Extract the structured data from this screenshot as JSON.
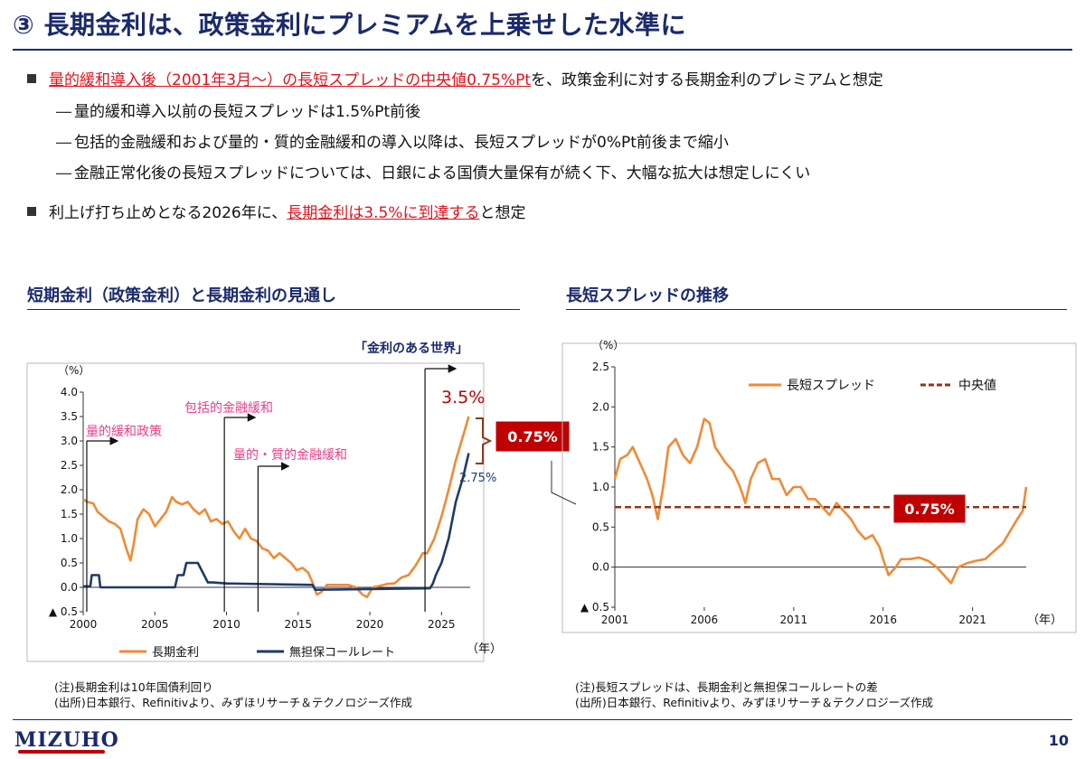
{
  "title": "③ 長期金利は、政策金利にプレミアムを上乗せした水準に",
  "bullets": {
    "b1_red": "量的緩和導入後（2001年3月～）の長短スプレッドの中央値0.75%Pt",
    "b1_rest": "を、政策金利に対する長期金利のプレミアムと想定",
    "s1": "量的緩和導入以前の長短スプレッドは1.5%Pt前後",
    "s2": "包括的金融緩和および量的・質的金融緩和の導入以降は、長短スプレッドが0%Pt前後まで縮小",
    "s3": "金融正常化後の長短スプレッドについては、日銀による国債大量保有が続く下、大幅な拡大は想定しにくい",
    "b2_a": "利上げ打ち止めとなる2026年に、",
    "b2_red": "長期金利は3.5%に到達する",
    "b2_c": "と想定",
    "dash": "―"
  },
  "left_section_title": "短期金利（政策金利）と長期金利の見通し",
  "right_section_title": "長短スプレッドの推移",
  "notes": {
    "left1": "(注)長期金利は10年国債利回り",
    "left2": "(出所)日本銀行、Refinitivより、みずほリサーチ＆テクノロジーズ作成",
    "right1": "(注)長短スプレッドは、長期金利と無担保コールレートの差",
    "right2": "(出所)日本銀行、Refinitivより、みずほリサーチ＆テクノロジーズ作成"
  },
  "footer": {
    "logo": "MIZUHO",
    "page": "10"
  },
  "colors": {
    "orange": "#f08a36",
    "navy": "#1f3a68",
    "brown": "#8b3a1a",
    "red": "#c00000",
    "pink": "#e8408a",
    "title": "#1a2a6c"
  },
  "chart_data": [
    {
      "type": "line",
      "title": "短期金利（政策金利）と長期金利の見通し",
      "ylabel": "（%）",
      "xlabel": "（年）",
      "xlim": [
        2000,
        2027
      ],
      "ylim": [
        -0.5,
        4.0
      ],
      "yticks": [
        -0.5,
        0.0,
        0.5,
        1.0,
        1.5,
        2.0,
        2.5,
        3.0,
        3.5,
        4.0
      ],
      "ytick_labels": [
        "▲ 0.5",
        "0.0",
        "0.5",
        "1.0",
        "1.5",
        "2.0",
        "2.5",
        "3.0",
        "3.5",
        "4.0"
      ],
      "xticks": [
        2000,
        2005,
        2010,
        2015,
        2020,
        2025
      ],
      "legend_position": "bottom",
      "series": [
        {
          "name": "長期金利",
          "color": "#f08a36",
          "x": [
            2000.0,
            2000.3,
            2000.7,
            2001.0,
            2001.4,
            2001.8,
            2002.2,
            2002.6,
            2003.0,
            2003.3,
            2003.5,
            2003.8,
            2004.2,
            2004.6,
            2005.0,
            2005.4,
            2005.8,
            2006.2,
            2006.5,
            2006.9,
            2007.3,
            2007.7,
            2008.1,
            2008.5,
            2008.9,
            2009.3,
            2009.7,
            2010.1,
            2010.5,
            2010.9,
            2011.3,
            2011.7,
            2012.1,
            2012.5,
            2012.9,
            2013.3,
            2013.7,
            2014.1,
            2014.5,
            2014.9,
            2015.3,
            2015.7,
            2016.0,
            2016.3,
            2016.6,
            2017.0,
            2017.5,
            2018.0,
            2018.5,
            2019.0,
            2019.5,
            2019.8,
            2020.2,
            2020.7,
            2021.2,
            2021.7,
            2022.2,
            2022.7,
            2023.2,
            2023.7,
            2024.0,
            2024.5,
            2025.0,
            2025.5,
            2026.0,
            2026.5,
            2026.9
          ],
          "values": [
            1.8,
            1.75,
            1.72,
            1.55,
            1.45,
            1.35,
            1.3,
            1.2,
            0.8,
            0.55,
            0.85,
            1.4,
            1.6,
            1.5,
            1.25,
            1.4,
            1.55,
            1.85,
            1.75,
            1.7,
            1.75,
            1.6,
            1.5,
            1.6,
            1.35,
            1.4,
            1.3,
            1.35,
            1.15,
            1.0,
            1.2,
            1.0,
            0.95,
            0.8,
            0.75,
            0.6,
            0.7,
            0.6,
            0.5,
            0.35,
            0.4,
            0.3,
            0.1,
            -0.15,
            -0.1,
            0.05,
            0.05,
            0.05,
            0.05,
            0.0,
            -0.15,
            -0.2,
            0.0,
            0.03,
            0.07,
            0.08,
            0.2,
            0.25,
            0.45,
            0.7,
            0.7,
            1.0,
            1.45,
            2.0,
            2.6,
            3.1,
            3.5
          ]
        },
        {
          "name": "無担保コールレート",
          "color": "#1f3a68",
          "x": [
            2000.0,
            2000.5,
            2000.6,
            2001.1,
            2001.2,
            2006.4,
            2006.6,
            2007.0,
            2007.2,
            2008.0,
            2008.7,
            2009.0,
            2010.0,
            2016.0,
            2016.2,
            2024.2,
            2024.4,
            2024.6,
            2025.0,
            2025.5,
            2026.0,
            2026.5,
            2026.9
          ],
          "values": [
            0.02,
            0.02,
            0.25,
            0.25,
            0.0,
            0.0,
            0.25,
            0.25,
            0.5,
            0.5,
            0.1,
            0.1,
            0.08,
            0.05,
            -0.05,
            -0.02,
            0.08,
            0.25,
            0.5,
            1.0,
            1.75,
            2.25,
            2.75
          ]
        }
      ],
      "annotations": [
        {
          "text": "量的緩和政策",
          "x": 2001.2,
          "color": "#e8408a"
        },
        {
          "text": "包括的金融緩和",
          "x": 2010.8,
          "color": "#e8408a"
        },
        {
          "text": "量的・質的金融緩和",
          "x": 2013.3,
          "color": "#e8408a"
        },
        {
          "text": "「金利のある世界」",
          "x": 2024.2,
          "color": "#1a2a6c"
        },
        {
          "text": "3.5%",
          "color": "#c00000"
        },
        {
          "text": "2.75%",
          "color": "#1f3a68"
        },
        {
          "text": "0.75%",
          "color": "#c00000"
        }
      ]
    },
    {
      "type": "line",
      "title": "長短スプレッドの推移",
      "ylabel": "（%）",
      "xlabel": "（年）",
      "xlim": [
        2001,
        2024
      ],
      "ylim": [
        -0.5,
        2.5
      ],
      "yticks": [
        -0.5,
        0.0,
        0.5,
        1.0,
        1.5,
        2.0,
        2.5
      ],
      "ytick_labels": [
        "▲ 0.5",
        "0.0",
        "0.5",
        "1.0",
        "1.5",
        "2.0",
        "2.5"
      ],
      "xticks": [
        2001,
        2006,
        2011,
        2016,
        2021
      ],
      "legend_position": "top",
      "series": [
        {
          "name": "長短スプレッド",
          "color": "#f08a36",
          "x": [
            2001.0,
            2001.3,
            2001.7,
            2002.0,
            2002.4,
            2002.8,
            2003.1,
            2003.4,
            2003.7,
            2004.0,
            2004.4,
            2004.8,
            2005.2,
            2005.6,
            2006.0,
            2006.3,
            2006.6,
            2006.9,
            2007.2,
            2007.6,
            2008.0,
            2008.3,
            2008.6,
            2009.0,
            2009.4,
            2009.8,
            2010.2,
            2010.6,
            2011.0,
            2011.4,
            2011.8,
            2012.2,
            2012.6,
            2013.0,
            2013.4,
            2013.8,
            2014.2,
            2014.6,
            2015.0,
            2015.4,
            2015.8,
            2016.0,
            2016.3,
            2016.7,
            2017.0,
            2017.5,
            2018.0,
            2018.5,
            2019.0,
            2019.4,
            2019.8,
            2020.2,
            2020.7,
            2021.2,
            2021.7,
            2022.2,
            2022.7,
            2023.1,
            2023.5,
            2023.8,
            2024.0
          ],
          "values": [
            1.1,
            1.35,
            1.4,
            1.5,
            1.3,
            1.1,
            0.9,
            0.6,
            1.0,
            1.5,
            1.6,
            1.4,
            1.3,
            1.5,
            1.85,
            1.8,
            1.5,
            1.4,
            1.3,
            1.2,
            1.0,
            0.8,
            1.1,
            1.3,
            1.35,
            1.1,
            1.1,
            0.9,
            1.0,
            1.0,
            0.85,
            0.85,
            0.75,
            0.65,
            0.8,
            0.7,
            0.6,
            0.45,
            0.35,
            0.4,
            0.25,
            0.1,
            -0.1,
            0.0,
            0.1,
            0.1,
            0.12,
            0.08,
            0.0,
            -0.1,
            -0.2,
            0.0,
            0.05,
            0.08,
            0.1,
            0.2,
            0.3,
            0.45,
            0.6,
            0.7,
            1.0
          ]
        },
        {
          "name": "中央値",
          "color": "#8b3a1a",
          "dashed": true,
          "x": [
            2001,
            2024
          ],
          "values": [
            0.75,
            0.75
          ]
        }
      ],
      "annotations": [
        {
          "text": "0.75%",
          "color": "#c00000"
        }
      ]
    }
  ]
}
